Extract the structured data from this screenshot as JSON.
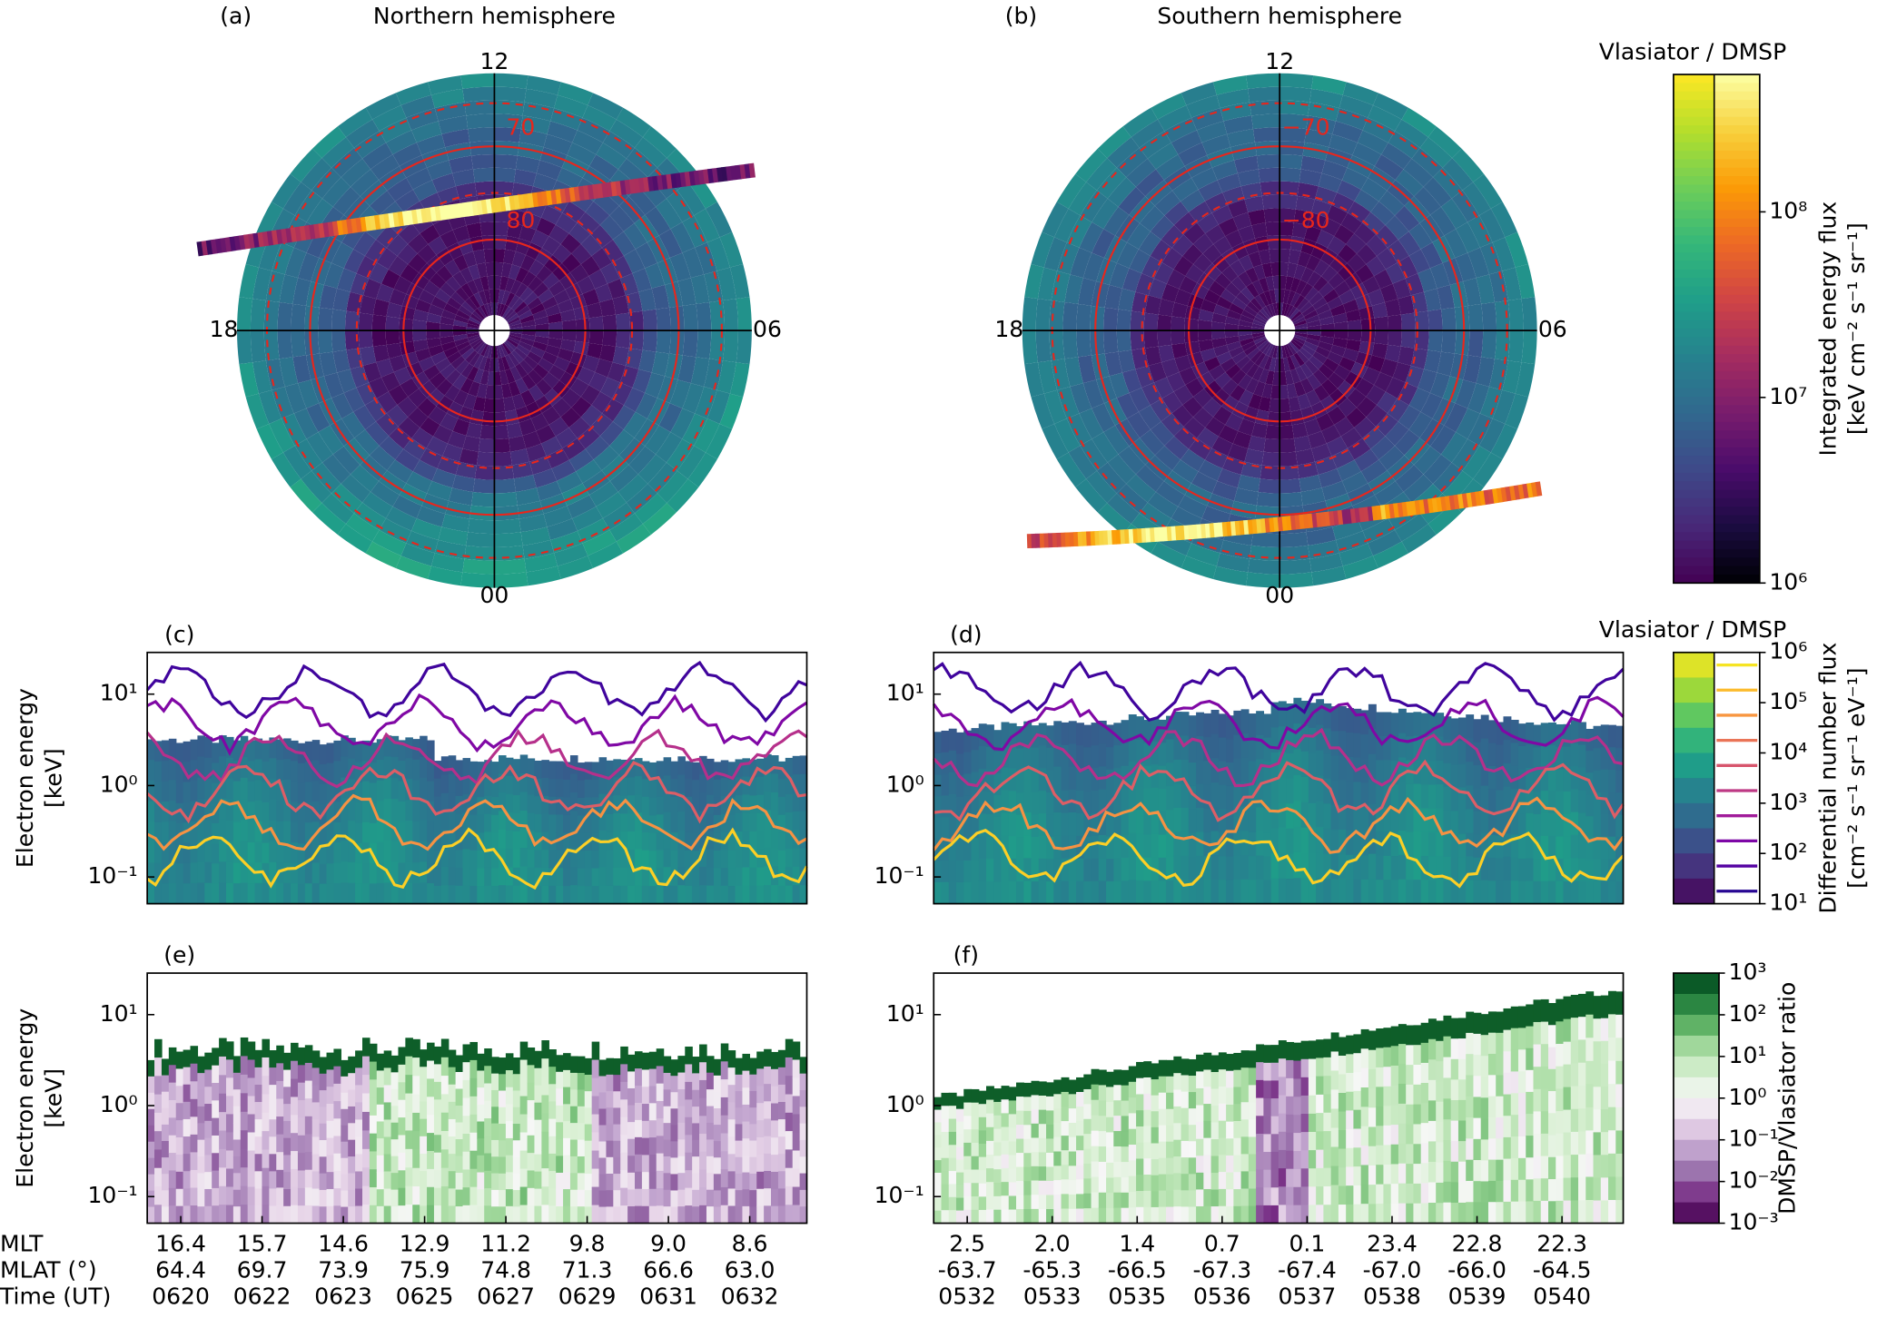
{
  "chart_data": [
    {
      "type": "polar",
      "panel": "(a)",
      "title": "Northern hemisphere",
      "angle_labels": [
        "12",
        "18",
        "06",
        "00"
      ],
      "lat_labels": [
        "70",
        "80"
      ]
    },
    {
      "type": "polar",
      "panel": "(b)",
      "title": "Southern hemisphere",
      "angle_labels": [
        "12",
        "18",
        "06",
        "00"
      ],
      "lat_labels": [
        "−70",
        "−80"
      ]
    },
    {
      "type": "colorbar",
      "title": "Vlasiator / DMSP",
      "label": [
        "Integrated energy flux",
        "[keV cm⁻² s⁻¹ sr⁻¹]"
      ],
      "log": true,
      "ylim": [
        1000000,
        550000000
      ],
      "yticks": [
        {
          "value": 1000000,
          "label": "10⁶"
        },
        {
          "value": 10000000,
          "label": "10⁷"
        },
        {
          "value": 100000000,
          "label": "10⁸"
        }
      ]
    },
    {
      "type": "spectrogram",
      "panel": "(c)",
      "ylabel": [
        "Electron energy",
        "[keV]"
      ],
      "log": true,
      "ylim": [
        0.051,
        28.6
      ],
      "yticks": [
        {
          "value": 0.1,
          "label": "10⁻¹"
        },
        {
          "value": 1,
          "label": "10⁰"
        },
        {
          "value": 10,
          "label": "10¹"
        }
      ]
    },
    {
      "type": "spectrogram",
      "panel": "(d)",
      "log": true,
      "ylim": [
        0.051,
        28.6
      ],
      "yticks": [
        {
          "value": 0.1,
          "label": "10⁻¹"
        },
        {
          "value": 1,
          "label": "10⁰"
        },
        {
          "value": 10,
          "label": "10¹"
        }
      ]
    },
    {
      "type": "colorbar",
      "title": "Vlasiator / DMSP",
      "label": [
        "Differential number flux",
        "[cm⁻² s⁻¹ sr⁻¹ eV⁻¹]"
      ],
      "log": true,
      "ylim": [
        10,
        1000000
      ],
      "yticks": [
        {
          "value": 10,
          "label": "10¹"
        },
        {
          "value": 100,
          "label": "10²"
        },
        {
          "value": 1000,
          "label": "10³"
        },
        {
          "value": 10000,
          "label": "10⁴"
        },
        {
          "value": 100000,
          "label": "10⁵"
        },
        {
          "value": 1000000,
          "label": "10⁶"
        }
      ]
    },
    {
      "type": "ratio",
      "panel": "(e)",
      "ylabel": [
        "Electron energy",
        "[keV]"
      ],
      "log": true,
      "ylim": [
        0.051,
        28.6
      ],
      "yticks": [
        {
          "value": 0.1,
          "label": "10⁻¹"
        },
        {
          "value": 1,
          "label": "10⁰"
        },
        {
          "value": 10,
          "label": "10¹"
        }
      ],
      "x_row_names": [
        "MLT",
        "MLAT (°)",
        "Time (UT)"
      ],
      "x_rows": [
        [
          "16.4",
          "15.7",
          "14.6",
          "12.9",
          "11.2",
          "9.8",
          "9.0",
          "8.6"
        ],
        [
          "64.4",
          "69.7",
          "73.9",
          "75.9",
          "74.8",
          "71.3",
          "66.6",
          "63.0"
        ],
        [
          "0620",
          "0622",
          "0623",
          "0625",
          "0627",
          "0629",
          "0631",
          "0632"
        ]
      ]
    },
    {
      "type": "ratio",
      "panel": "(f)",
      "log": true,
      "ylim": [
        0.051,
        28.6
      ],
      "yticks": [
        {
          "value": 0.1,
          "label": "10⁻¹"
        },
        {
          "value": 1,
          "label": "10⁰"
        },
        {
          "value": 10,
          "label": "10¹"
        }
      ],
      "x_rows": [
        [
          "2.5",
          "2.0",
          "1.4",
          "0.7",
          "0.1",
          "23.4",
          "22.8",
          "22.3"
        ],
        [
          "-63.7",
          "-65.3",
          "-66.5",
          "-67.3",
          "-67.4",
          "-67.0",
          "-66.0",
          "-64.5"
        ],
        [
          "0532",
          "0533",
          "0535",
          "0536",
          "0537",
          "0538",
          "0539",
          "0540"
        ]
      ]
    },
    {
      "type": "colorbar",
      "label": [
        "DMSP/Vlasiator ratio"
      ],
      "log": true,
      "ylim": [
        0.001,
        1000
      ],
      "yticks": [
        {
          "value": 0.001,
          "label": "10⁻³"
        },
        {
          "value": 0.01,
          "label": "10⁻²"
        },
        {
          "value": 0.1,
          "label": "10⁻¹"
        },
        {
          "value": 1,
          "label": "10⁰"
        },
        {
          "value": 10,
          "label": "10¹"
        },
        {
          "value": 100,
          "label": "10²"
        },
        {
          "value": 1000,
          "label": "10³"
        }
      ]
    }
  ]
}
